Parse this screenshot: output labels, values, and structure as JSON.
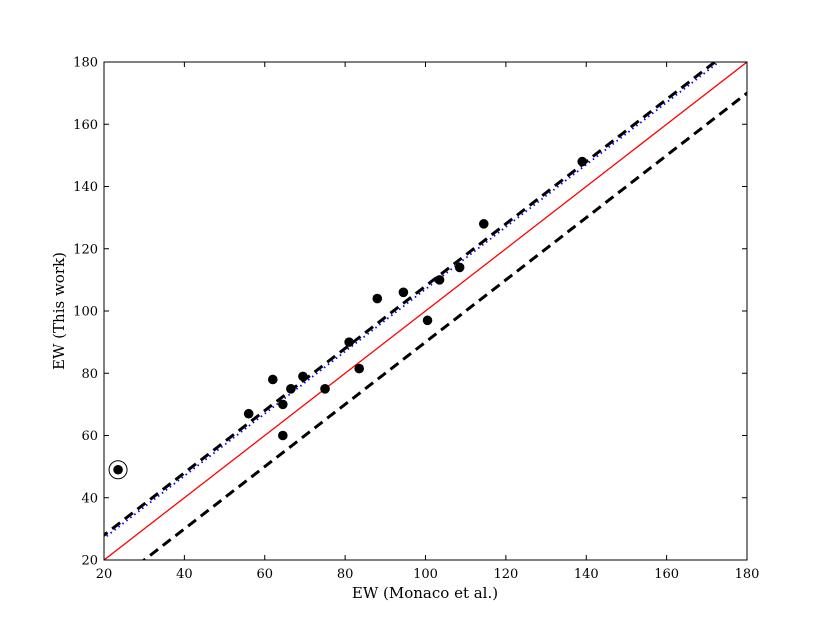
{
  "chart_data": {
    "type": "scatter",
    "xlabel": "EW (Monaco et al.)",
    "ylabel": "EW (This work)",
    "xlim": [
      20,
      180
    ],
    "ylim": [
      20,
      180
    ],
    "xticks": [
      "20",
      "40",
      "60",
      "80",
      "100",
      "120",
      "140",
      "160",
      "180"
    ],
    "yticks": [
      "20",
      "40",
      "60",
      "80",
      "100",
      "120",
      "140",
      "160",
      "180"
    ],
    "grid": false,
    "points": [
      {
        "x": 23.5,
        "y": 49,
        "circled": true
      },
      {
        "x": 56,
        "y": 67
      },
      {
        "x": 62,
        "y": 78
      },
      {
        "x": 64.5,
        "y": 70
      },
      {
        "x": 64.5,
        "y": 60
      },
      {
        "x": 66.5,
        "y": 75
      },
      {
        "x": 69.5,
        "y": 79
      },
      {
        "x": 75,
        "y": 75
      },
      {
        "x": 81,
        "y": 90
      },
      {
        "x": 83.5,
        "y": 81.5
      },
      {
        "x": 88,
        "y": 104
      },
      {
        "x": 94.5,
        "y": 106
      },
      {
        "x": 100.5,
        "y": 97
      },
      {
        "x": 103.5,
        "y": 110
      },
      {
        "x": 108.5,
        "y": 114
      },
      {
        "x": 114.5,
        "y": 128
      },
      {
        "x": 139,
        "y": 148
      }
    ],
    "lines": [
      {
        "style": "solid",
        "color": "#ff0000",
        "slope": 1,
        "intercept": 0
      },
      {
        "style": "dotted",
        "color": "#0000ff",
        "slope": 1,
        "intercept": 7
      },
      {
        "style": "dashed",
        "color": "#000000",
        "slope": 1,
        "intercept": 8,
        "upper": true
      },
      {
        "style": "dashed",
        "color": "#000000",
        "slope": 1,
        "intercept": -10,
        "lower": true
      }
    ]
  }
}
